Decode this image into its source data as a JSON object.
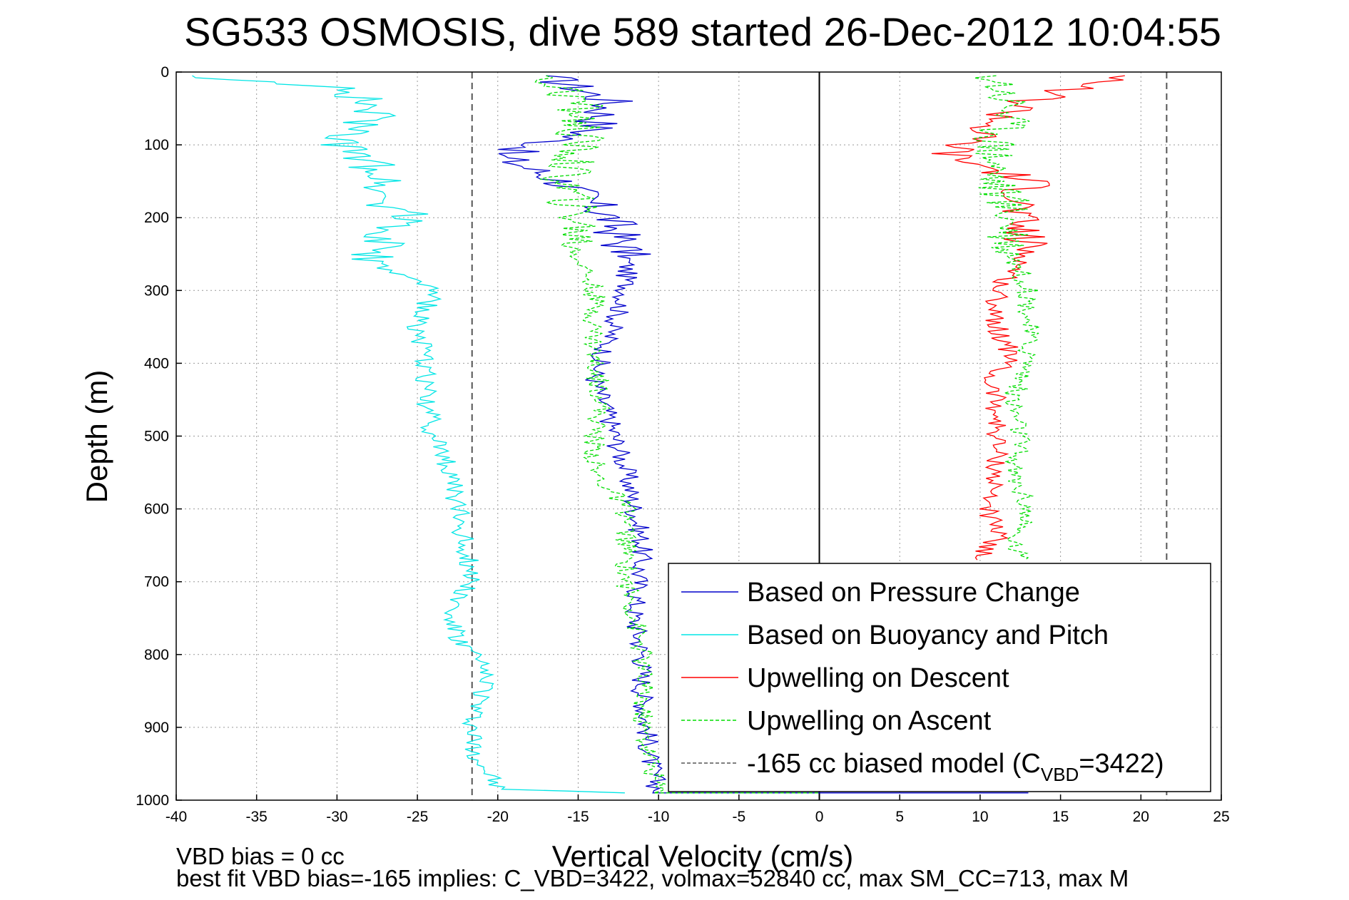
{
  "chart_data": {
    "type": "line",
    "title": "SG533 OSMOSIS, dive 589 started 26-Dec-2012 10:04:55",
    "xlabel": "Vertical Velocity (cm/s)",
    "ylabel": "Depth (m)",
    "xlim": [
      -40,
      25
    ],
    "ylim": [
      1000,
      0
    ],
    "y_reversed": true,
    "grid": "dotted",
    "xticks": [
      "-40",
      "-35",
      "-30",
      "-25",
      "-20",
      "-15",
      "-10",
      "-5",
      "0",
      "5",
      "10",
      "15",
      "20",
      "25"
    ],
    "yticks": [
      "0",
      "100",
      "200",
      "300",
      "400",
      "500",
      "600",
      "700",
      "800",
      "900",
      "1000"
    ],
    "vlines": [
      {
        "x": -21.6,
        "style": "dashed",
        "color": "#555555"
      },
      {
        "x": 21.6,
        "style": "dashed",
        "color": "#555555"
      },
      {
        "x": 0,
        "style": "solid",
        "color": "#000000"
      }
    ],
    "legend_position": "bottom-right",
    "series": [
      {
        "name": "Based on Pressure Change",
        "color": "#0000cc",
        "style": "solid",
        "points": [
          [
            -17,
            5
          ],
          [
            -13,
            40
          ],
          [
            -14,
            80
          ],
          [
            -20,
            115
          ],
          [
            -16,
            150
          ],
          [
            -13,
            200
          ],
          [
            -12,
            250
          ],
          [
            -12,
            300
          ],
          [
            -13,
            360
          ],
          [
            -14,
            420
          ],
          [
            -13,
            480
          ],
          [
            -12,
            550
          ],
          [
            -11,
            650
          ],
          [
            -11.5,
            750
          ],
          [
            -11,
            800
          ],
          [
            -11,
            850
          ],
          [
            -10.5,
            950
          ],
          [
            -10,
            990
          ],
          [
            10,
            990
          ],
          [
            13,
            990
          ]
        ]
      },
      {
        "name": "Based on Buoyancy and Pitch",
        "color": "#00e5e5",
        "style": "solid",
        "points": [
          [
            -39,
            5
          ],
          [
            -29,
            25
          ],
          [
            -28,
            60
          ],
          [
            -30,
            100
          ],
          [
            -27,
            140
          ],
          [
            -27,
            180
          ],
          [
            -25,
            195
          ],
          [
            -27,
            220
          ],
          [
            -28,
            260
          ],
          [
            -24,
            300
          ],
          [
            -25,
            350
          ],
          [
            -24.5,
            400
          ],
          [
            -24.5,
            450
          ],
          [
            -24,
            500
          ],
          [
            -23,
            550
          ],
          [
            -22.5,
            600
          ],
          [
            -22,
            650
          ],
          [
            -21.5,
            700
          ],
          [
            -23,
            740
          ],
          [
            -22.5,
            780
          ],
          [
            -21.5,
            800
          ],
          [
            -20.5,
            840
          ],
          [
            -21.5,
            880
          ],
          [
            -21.5,
            930
          ],
          [
            -20,
            985
          ],
          [
            -12,
            990
          ]
        ]
      },
      {
        "name": "Upwelling on Descent",
        "color": "#ff0000",
        "style": "solid",
        "points": [
          [
            19,
            5
          ],
          [
            13,
            40
          ],
          [
            10,
            80
          ],
          [
            8,
            115
          ],
          [
            13,
            150
          ],
          [
            12,
            200
          ],
          [
            13,
            250
          ],
          [
            11,
            300
          ],
          [
            11,
            350
          ],
          [
            12,
            390
          ],
          [
            10.5,
            420
          ],
          [
            11,
            450
          ],
          [
            11,
            500
          ],
          [
            11,
            540
          ],
          [
            10.5,
            600
          ],
          [
            11,
            640
          ],
          [
            10,
            670
          ]
        ]
      },
      {
        "name": "Upwelling on Ascent",
        "color": "#00dd00",
        "style": "dashed",
        "points": [
          [
            -17,
            5
          ],
          [
            -15,
            40
          ],
          [
            -15,
            100
          ],
          [
            -16,
            150
          ],
          [
            -15,
            200
          ],
          [
            -15,
            250
          ],
          [
            -14,
            300
          ],
          [
            -14,
            350
          ],
          [
            -14,
            400
          ],
          [
            -13.5,
            450
          ],
          [
            -14,
            500
          ],
          [
            -14,
            550
          ],
          [
            -12,
            600
          ],
          [
            -12,
            700
          ],
          [
            -11,
            800
          ],
          [
            -11,
            900
          ],
          [
            -10,
            990
          ],
          [
            0,
            990
          ],
          [
            11,
            5
          ],
          [
            12,
            50
          ],
          [
            11,
            100
          ],
          [
            11,
            150
          ],
          [
            12,
            200
          ],
          [
            12,
            250
          ],
          [
            13,
            300
          ],
          [
            13,
            350
          ],
          [
            13,
            400
          ],
          [
            12,
            450
          ],
          [
            12.5,
            500
          ],
          [
            12,
            550
          ],
          [
            13,
            600
          ],
          [
            12,
            640
          ],
          [
            12.5,
            670
          ]
        ]
      },
      {
        "name": "-165 cc biased model (C",
        "name_sub": "VBD",
        "name_tail": "=3422)",
        "color": "#555555",
        "style": "dashed",
        "points": []
      }
    ]
  },
  "footnote": {
    "line1": "VBD bias = 0 cc",
    "line2": "best fit VBD bias=-165 implies: C_VBD=3422, volmax=52840 cc, max SM_CC=713, max M"
  }
}
